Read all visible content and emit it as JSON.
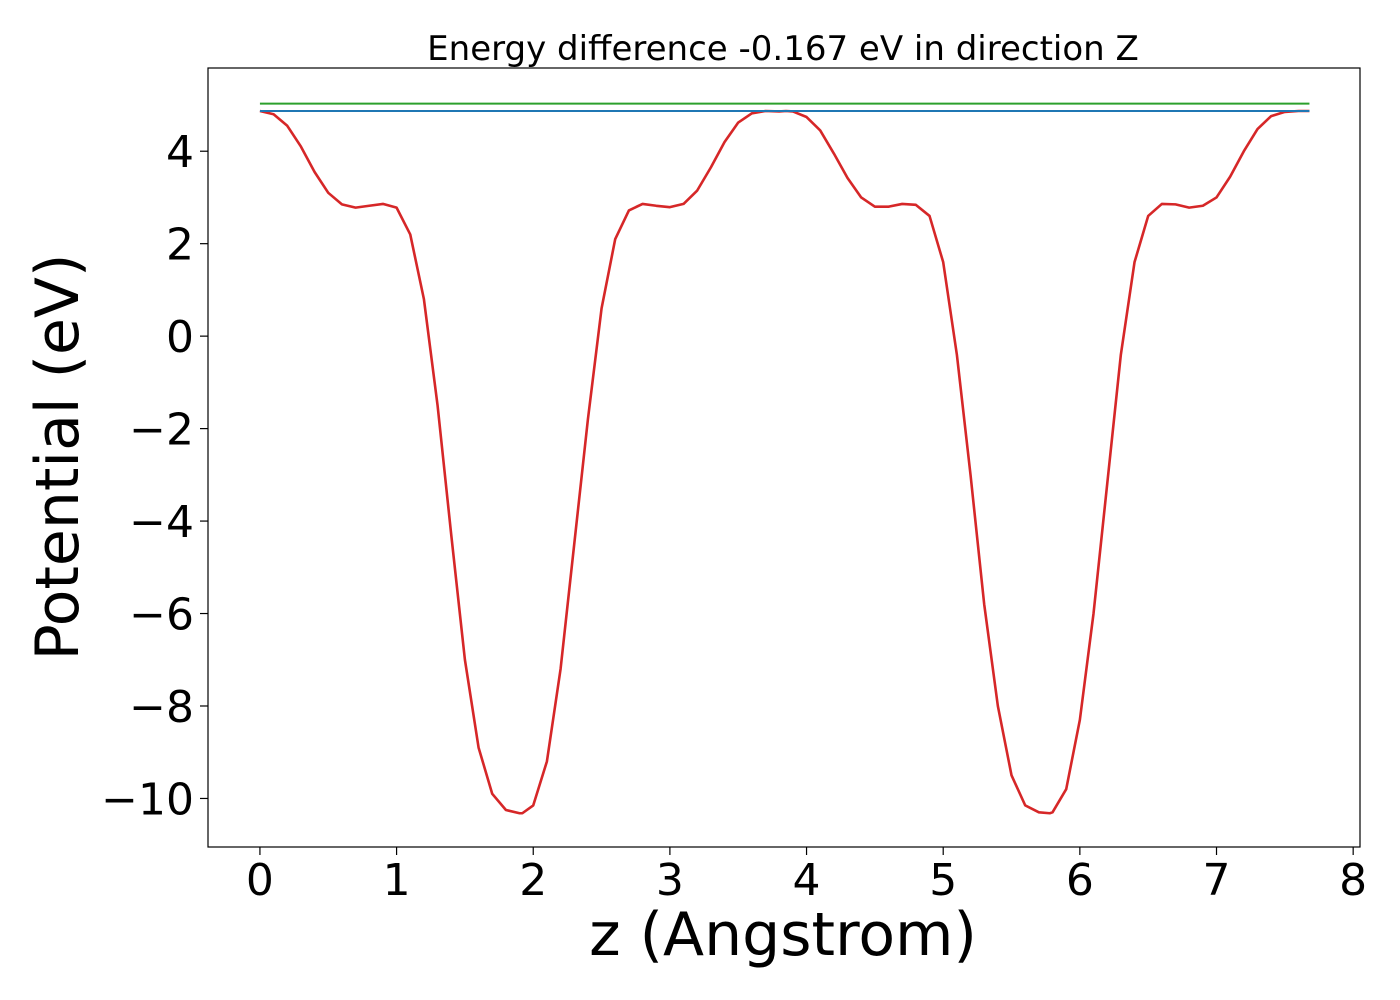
{
  "chart_data": {
    "type": "line",
    "title": "Energy difference -0.167 eV in direction Z",
    "xlabel": "z (Angstrom)",
    "ylabel": "Potential (eV)",
    "xlim": [
      -0.38,
      8.05
    ],
    "ylim": [
      -11.05,
      5.8
    ],
    "xticks": [
      0,
      1,
      2,
      3,
      4,
      5,
      6,
      7,
      8
    ],
    "xtick_labels": [
      "0",
      "1",
      "2",
      "3",
      "4",
      "5",
      "6",
      "7",
      "8"
    ],
    "yticks": [
      -10,
      -8,
      -6,
      -4,
      -2,
      0,
      2,
      4
    ],
    "ytick_labels": [
      "−10",
      "−8",
      "−6",
      "−4",
      "−2",
      "0",
      "2",
      "4"
    ],
    "grid": false,
    "legend": false,
    "series": [
      {
        "color": "#d62728",
        "x": [
          0.0,
          0.1,
          0.2,
          0.3,
          0.4,
          0.5,
          0.6,
          0.7,
          0.8,
          0.9,
          1.0,
          1.1,
          1.2,
          1.3,
          1.4,
          1.5,
          1.6,
          1.7,
          1.8,
          1.9,
          1.92,
          2.0,
          2.1,
          2.2,
          2.3,
          2.4,
          2.5,
          2.6,
          2.7,
          2.8,
          2.9,
          3.0,
          3.1,
          3.2,
          3.3,
          3.4,
          3.5,
          3.6,
          3.7,
          3.8,
          3.85,
          3.9,
          4.0,
          4.1,
          4.2,
          4.3,
          4.4,
          4.5,
          4.6,
          4.7,
          4.8,
          4.9,
          5.0,
          5.1,
          5.2,
          5.3,
          5.4,
          5.5,
          5.6,
          5.7,
          5.78,
          5.8,
          5.9,
          6.0,
          6.1,
          6.2,
          6.3,
          6.4,
          6.5,
          6.6,
          6.7,
          6.8,
          6.9,
          7.0,
          7.1,
          7.2,
          7.3,
          7.4,
          7.5,
          7.6,
          7.68
        ],
        "y": [
          4.87,
          4.8,
          4.55,
          4.1,
          3.55,
          3.1,
          2.85,
          2.78,
          2.82,
          2.86,
          2.78,
          2.2,
          0.8,
          -1.5,
          -4.3,
          -7.0,
          -8.9,
          -9.9,
          -10.25,
          -10.32,
          -10.32,
          -10.15,
          -9.2,
          -7.2,
          -4.5,
          -1.8,
          0.6,
          2.1,
          2.72,
          2.86,
          2.82,
          2.79,
          2.86,
          3.15,
          3.65,
          4.2,
          4.62,
          4.82,
          4.87,
          4.86,
          4.87,
          4.86,
          4.74,
          4.45,
          3.95,
          3.42,
          3.0,
          2.8,
          2.8,
          2.86,
          2.84,
          2.6,
          1.6,
          -0.4,
          -3.0,
          -5.8,
          -8.0,
          -9.5,
          -10.15,
          -10.3,
          -10.32,
          -10.3,
          -9.8,
          -8.3,
          -6.0,
          -3.2,
          -0.4,
          1.6,
          2.6,
          2.86,
          2.85,
          2.78,
          2.82,
          3.0,
          3.45,
          4.0,
          4.48,
          4.76,
          4.85,
          4.87,
          4.87
        ]
      },
      {
        "color": "#1f77b4",
        "x": [
          0.0,
          7.68
        ],
        "y": [
          4.87,
          4.87
        ]
      },
      {
        "color": "#2ca02c",
        "x": [
          0.0,
          7.68
        ],
        "y": [
          5.03,
          5.03
        ]
      }
    ]
  }
}
